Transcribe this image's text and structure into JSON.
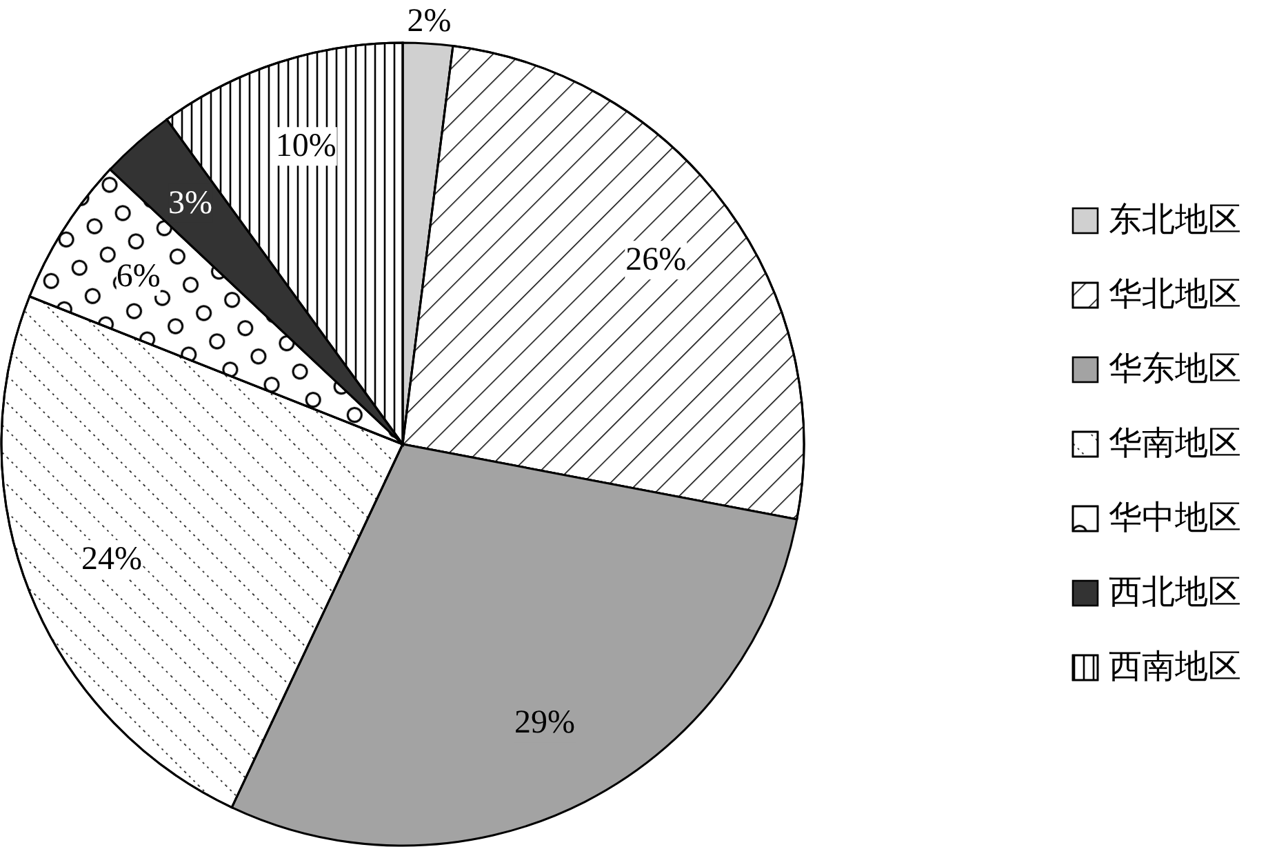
{
  "chart_data": {
    "type": "pie",
    "categories": [
      "东北地区",
      "华北地区",
      "华东地区",
      "华南地区",
      "华中地区",
      "西北地区",
      "西南地区"
    ],
    "values": [
      2,
      26,
      29,
      24,
      6,
      3,
      10
    ],
    "colors": [
      "#d0d0d0",
      "#ffffff",
      "#a3a3a3",
      "#ffffff",
      "#ffffff",
      "#333333",
      "#ffffff"
    ],
    "value_labels": [
      "2%",
      "26%",
      "29%",
      "24%",
      "6%",
      "3%",
      "10%"
    ],
    "legend": "right"
  }
}
